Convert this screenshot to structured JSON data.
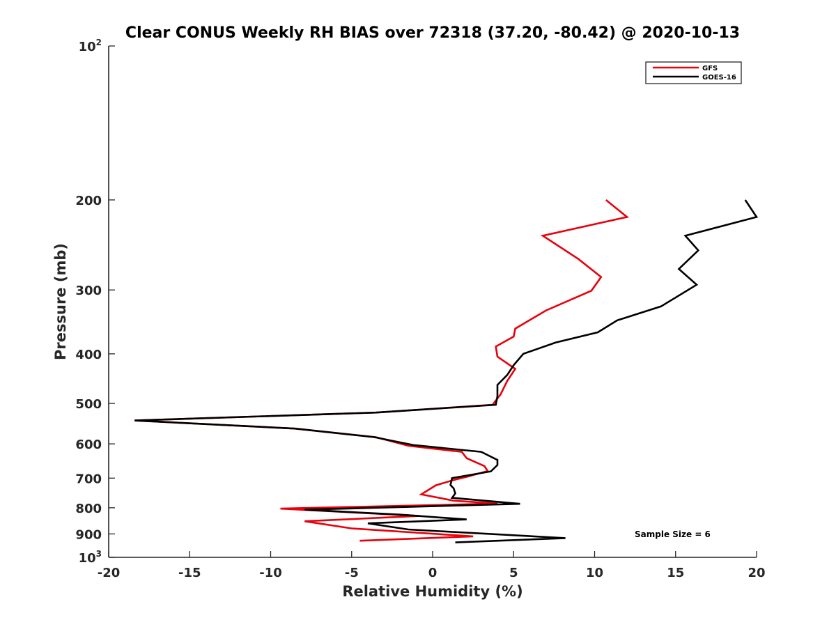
{
  "chart_data": {
    "type": "line",
    "title": "Clear CONUS Weekly RH BIAS over 72318 (37.20, -80.42) @ 2020-10-13",
    "xlabel": "Relative Humidity (%)",
    "ylabel": "Pressure (mb)",
    "xlim": [
      -20,
      20
    ],
    "ylim": [
      100,
      1000
    ],
    "y_scale": "log",
    "y_reversed": true,
    "x_ticks": [
      "-20",
      "-15",
      "-10",
      "-5",
      "0",
      "5",
      "10",
      "15",
      "20"
    ],
    "y_ticks": [
      {
        "value": 100,
        "base": "10",
        "sup": "2"
      },
      {
        "value": 200,
        "label": "200"
      },
      {
        "value": 300,
        "label": "300"
      },
      {
        "value": 400,
        "label": "400"
      },
      {
        "value": 500,
        "label": "500"
      },
      {
        "value": 600,
        "label": "600"
      },
      {
        "value": 700,
        "label": "700"
      },
      {
        "value": 800,
        "label": "800"
      },
      {
        "value": 900,
        "label": "900"
      },
      {
        "value": 1000,
        "base": "10",
        "sup": "3"
      }
    ],
    "grid": false,
    "legend_position": "top-right",
    "annotation": "Sample Size = 6",
    "series": [
      {
        "name": "GFS",
        "color": "#e8000b",
        "points": [
          [
            10.7,
            200
          ],
          [
            12.0,
            216
          ],
          [
            6.8,
            235
          ],
          [
            9.0,
            261
          ],
          [
            10.4,
            283
          ],
          [
            9.8,
            301
          ],
          [
            7.0,
            329
          ],
          [
            5.1,
            357
          ],
          [
            5.0,
            370
          ],
          [
            3.9,
            387
          ],
          [
            4.0,
            405
          ],
          [
            5.1,
            428
          ],
          [
            4.6,
            452
          ],
          [
            4.2,
            480
          ],
          [
            3.7,
            503
          ],
          [
            -3.5,
            521
          ],
          [
            -18.4,
            540
          ],
          [
            -8.5,
            560
          ],
          [
            -3.5,
            582
          ],
          [
            -1.5,
            605
          ],
          [
            1.8,
            622
          ],
          [
            2.1,
            640
          ],
          [
            3.2,
            663
          ],
          [
            3.4,
            678
          ],
          [
            2.1,
            696
          ],
          [
            1.3,
            706
          ],
          [
            0.2,
            723
          ],
          [
            -0.7,
            753
          ],
          [
            1.3,
            775
          ],
          [
            4.0,
            785
          ],
          [
            -9.4,
            803
          ],
          [
            -0.8,
            830
          ],
          [
            -7.9,
            850
          ],
          [
            -5.0,
            878
          ],
          [
            2.5,
            910
          ],
          [
            -4.5,
            928
          ]
        ]
      },
      {
        "name": "GOES-16",
        "color": "#000000",
        "points": [
          [
            19.3,
            200
          ],
          [
            20.0,
            216
          ],
          [
            15.6,
            235
          ],
          [
            16.4,
            251
          ],
          [
            15.2,
            273
          ],
          [
            16.3,
            293
          ],
          [
            14.1,
            323
          ],
          [
            11.4,
            344
          ],
          [
            10.2,
            363
          ],
          [
            7.6,
            380
          ],
          [
            5.6,
            400
          ],
          [
            5.0,
            421
          ],
          [
            4.6,
            440
          ],
          [
            4.0,
            460
          ],
          [
            4.0,
            484
          ],
          [
            3.9,
            503
          ],
          [
            -3.5,
            521
          ],
          [
            -18.4,
            540
          ],
          [
            -8.5,
            560
          ],
          [
            -3.6,
            582
          ],
          [
            -1.2,
            603
          ],
          [
            3.0,
            622
          ],
          [
            4.0,
            645
          ],
          [
            4.0,
            660
          ],
          [
            3.6,
            679
          ],
          [
            1.2,
            700
          ],
          [
            1.1,
            722
          ],
          [
            1.3,
            733
          ],
          [
            1.4,
            750
          ],
          [
            1.2,
            765
          ],
          [
            5.4,
            786
          ],
          [
            -7.9,
            807
          ],
          [
            -2.0,
            825
          ],
          [
            2.1,
            843
          ],
          [
            -4.0,
            858
          ],
          [
            -1.5,
            882
          ],
          [
            8.2,
            917
          ],
          [
            1.4,
            935
          ]
        ]
      }
    ]
  }
}
